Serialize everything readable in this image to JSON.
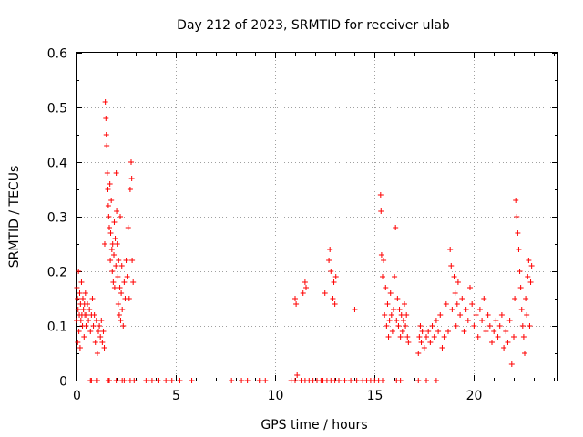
{
  "chart_data": {
    "type": "scatter",
    "title": "Day 212 of 2023, SRMTID for receiver ulab",
    "xlabel": "GPS time / hours",
    "ylabel": "SRMTID / TECUs",
    "xlim": [
      0,
      24.2
    ],
    "ylim": [
      0,
      0.6
    ],
    "x_ticks": [
      0,
      5,
      10,
      15,
      20
    ],
    "y_ticks": [
      0,
      0.1,
      0.2,
      0.3,
      0.4,
      0.5,
      0.6
    ],
    "x_tick_labels": [
      "0",
      "5",
      "10",
      "15",
      "20"
    ],
    "y_tick_labels": [
      "0",
      "0.1",
      "0.2",
      "0.3",
      "0.4",
      "0.5",
      "0.6"
    ],
    "grid": true,
    "marker": "plus",
    "color": "#ff0000",
    "series": [
      {
        "name": "SRMTID",
        "points": [
          [
            0.0,
            0.11
          ],
          [
            0.02,
            0.17
          ],
          [
            0.05,
            0.15
          ],
          [
            0.06,
            0.07
          ],
          [
            0.08,
            0.13
          ],
          [
            0.1,
            0.2
          ],
          [
            0.12,
            0.09
          ],
          [
            0.14,
            0.12
          ],
          [
            0.16,
            0.16
          ],
          [
            0.18,
            0.06
          ],
          [
            0.2,
            0.14
          ],
          [
            0.22,
            0.11
          ],
          [
            0.25,
            0.18
          ],
          [
            0.27,
            0.12
          ],
          [
            0.3,
            0.1
          ],
          [
            0.32,
            0.15
          ],
          [
            0.35,
            0.13
          ],
          [
            0.38,
            0.08
          ],
          [
            0.4,
            0.14
          ],
          [
            0.42,
            0.12
          ],
          [
            0.45,
            0.16
          ],
          [
            0.48,
            0.1
          ],
          [
            0.5,
            0.12
          ],
          [
            0.55,
            0.14
          ],
          [
            0.6,
            0.11
          ],
          [
            0.65,
            0.13
          ],
          [
            0.7,
            0.09
          ],
          [
            0.75,
            0.12
          ],
          [
            0.8,
            0.15
          ],
          [
            0.85,
            0.1
          ],
          [
            0.9,
            0.12
          ],
          [
            0.95,
            0.07
          ],
          [
            1.0,
            0.11
          ],
          [
            1.05,
            0.05
          ],
          [
            1.1,
            0.09
          ],
          [
            1.15,
            0.1
          ],
          [
            1.2,
            0.08
          ],
          [
            1.25,
            0.11
          ],
          [
            1.3,
            0.07
          ],
          [
            1.35,
            0.09
          ],
          [
            1.4,
            0.06
          ],
          [
            1.42,
            0.25
          ],
          [
            1.45,
            0.51
          ],
          [
            1.48,
            0.48
          ],
          [
            1.5,
            0.45
          ],
          [
            1.52,
            0.43
          ],
          [
            1.55,
            0.38
          ],
          [
            1.58,
            0.35
          ],
          [
            1.6,
            0.32
          ],
          [
            1.62,
            0.3
          ],
          [
            1.65,
            0.28
          ],
          [
            1.68,
            0.36
          ],
          [
            1.7,
            0.22
          ],
          [
            1.72,
            0.27
          ],
          [
            1.75,
            0.33
          ],
          [
            1.78,
            0.24
          ],
          [
            1.8,
            0.2
          ],
          [
            1.82,
            0.25
          ],
          [
            1.85,
            0.18
          ],
          [
            1.88,
            0.23
          ],
          [
            1.9,
            0.29
          ],
          [
            1.92,
            0.17
          ],
          [
            1.95,
            0.26
          ],
          [
            1.98,
            0.21
          ],
          [
            2.0,
            0.38
          ],
          [
            2.02,
            0.31
          ],
          [
            2.05,
            0.25
          ],
          [
            2.08,
            0.19
          ],
          [
            2.1,
            0.14
          ],
          [
            2.12,
            0.22
          ],
          [
            2.15,
            0.12
          ],
          [
            2.18,
            0.17
          ],
          [
            2.2,
            0.3
          ],
          [
            2.22,
            0.11
          ],
          [
            2.25,
            0.16
          ],
          [
            2.28,
            0.21
          ],
          [
            2.3,
            0.13
          ],
          [
            2.35,
            0.1
          ],
          [
            2.4,
            0.18
          ],
          [
            2.45,
            0.15
          ],
          [
            2.5,
            0.22
          ],
          [
            2.55,
            0.19
          ],
          [
            2.6,
            0.28
          ],
          [
            2.65,
            0.15
          ],
          [
            2.7,
            0.35
          ],
          [
            2.75,
            0.4
          ],
          [
            2.78,
            0.37
          ],
          [
            2.8,
            0.22
          ],
          [
            2.85,
            0.18
          ],
          [
            11.0,
            0.15
          ],
          [
            11.05,
            0.14
          ],
          [
            11.1,
            0.01
          ],
          [
            11.4,
            0.16
          ],
          [
            11.5,
            0.18
          ],
          [
            11.55,
            0.17
          ],
          [
            12.5,
            0.16
          ],
          [
            12.7,
            0.22
          ],
          [
            12.75,
            0.24
          ],
          [
            12.8,
            0.2
          ],
          [
            12.9,
            0.15
          ],
          [
            12.95,
            0.18
          ],
          [
            13.0,
            0.14
          ],
          [
            13.05,
            0.19
          ],
          [
            14.0,
            0.13
          ],
          [
            15.3,
            0.34
          ],
          [
            15.32,
            0.31
          ],
          [
            15.35,
            0.23
          ],
          [
            15.4,
            0.19
          ],
          [
            15.45,
            0.22
          ],
          [
            15.5,
            0.12
          ],
          [
            15.55,
            0.17
          ],
          [
            15.6,
            0.1
          ],
          [
            15.65,
            0.14
          ],
          [
            15.7,
            0.08
          ],
          [
            15.75,
            0.11
          ],
          [
            15.8,
            0.16
          ],
          [
            15.85,
            0.12
          ],
          [
            15.9,
            0.09
          ],
          [
            15.95,
            0.13
          ],
          [
            16.0,
            0.19
          ],
          [
            16.05,
            0.28
          ],
          [
            16.1,
            0.11
          ],
          [
            16.15,
            0.15
          ],
          [
            16.2,
            0.1
          ],
          [
            16.25,
            0.13
          ],
          [
            16.3,
            0.08
          ],
          [
            16.35,
            0.12
          ],
          [
            16.4,
            0.09
          ],
          [
            16.45,
            0.11
          ],
          [
            16.5,
            0.14
          ],
          [
            16.55,
            0.1
          ],
          [
            16.6,
            0.12
          ],
          [
            16.65,
            0.08
          ],
          [
            16.7,
            0.07
          ],
          [
            17.2,
            0.05
          ],
          [
            17.25,
            0.08
          ],
          [
            17.3,
            0.1
          ],
          [
            17.35,
            0.07
          ],
          [
            17.4,
            0.09
          ],
          [
            17.5,
            0.06
          ],
          [
            17.6,
            0.08
          ],
          [
            17.7,
            0.09
          ],
          [
            17.8,
            0.07
          ],
          [
            17.9,
            0.1
          ],
          [
            18.0,
            0.08
          ],
          [
            18.1,
            0.11
          ],
          [
            18.2,
            0.09
          ],
          [
            18.3,
            0.12
          ],
          [
            18.4,
            0.06
          ],
          [
            18.5,
            0.08
          ],
          [
            18.6,
            0.14
          ],
          [
            18.7,
            0.09
          ],
          [
            18.8,
            0.24
          ],
          [
            18.85,
            0.21
          ],
          [
            18.9,
            0.13
          ],
          [
            19.0,
            0.19
          ],
          [
            19.05,
            0.16
          ],
          [
            19.1,
            0.1
          ],
          [
            19.15,
            0.14
          ],
          [
            19.2,
            0.18
          ],
          [
            19.3,
            0.12
          ],
          [
            19.4,
            0.15
          ],
          [
            19.5,
            0.09
          ],
          [
            19.6,
            0.13
          ],
          [
            19.7,
            0.11
          ],
          [
            19.8,
            0.17
          ],
          [
            19.9,
            0.14
          ],
          [
            20.0,
            0.1
          ],
          [
            20.1,
            0.12
          ],
          [
            20.2,
            0.08
          ],
          [
            20.3,
            0.13
          ],
          [
            20.4,
            0.11
          ],
          [
            20.5,
            0.15
          ],
          [
            20.6,
            0.09
          ],
          [
            20.7,
            0.12
          ],
          [
            20.8,
            0.1
          ],
          [
            20.9,
            0.07
          ],
          [
            21.0,
            0.09
          ],
          [
            21.1,
            0.11
          ],
          [
            21.2,
            0.08
          ],
          [
            21.3,
            0.1
          ],
          [
            21.4,
            0.12
          ],
          [
            21.5,
            0.06
          ],
          [
            21.6,
            0.09
          ],
          [
            21.7,
            0.07
          ],
          [
            21.8,
            0.11
          ],
          [
            21.9,
            0.03
          ],
          [
            22.0,
            0.08
          ],
          [
            22.05,
            0.15
          ],
          [
            22.1,
            0.33
          ],
          [
            22.15,
            0.3
          ],
          [
            22.2,
            0.27
          ],
          [
            22.25,
            0.24
          ],
          [
            22.3,
            0.2
          ],
          [
            22.35,
            0.17
          ],
          [
            22.4,
            0.13
          ],
          [
            22.45,
            0.1
          ],
          [
            22.5,
            0.08
          ],
          [
            22.55,
            0.05
          ],
          [
            22.6,
            0.15
          ],
          [
            22.65,
            0.12
          ],
          [
            22.7,
            0.19
          ],
          [
            22.75,
            0.22
          ],
          [
            22.8,
            0.1
          ],
          [
            22.85,
            0.18
          ],
          [
            22.9,
            0.21
          ]
        ],
        "zeros_x": [
          0.7,
          0.75,
          1.0,
          1.05,
          1.6,
          1.65,
          2.0,
          2.3,
          2.4,
          2.7,
          2.9,
          3.5,
          3.6,
          3.8,
          4.1,
          4.5,
          4.8,
          5.2,
          5.8,
          7.8,
          8.3,
          8.6,
          9.2,
          9.5,
          10.8,
          11.0,
          11.3,
          11.5,
          11.7,
          11.9,
          12.1,
          12.3,
          12.4,
          12.6,
          12.8,
          13.0,
          13.2,
          13.5,
          13.8,
          14.1,
          14.4,
          14.6,
          14.8,
          15.0,
          15.2,
          15.4,
          16.1,
          16.3,
          17.2,
          17.6,
          18.1
        ]
      }
    ]
  }
}
